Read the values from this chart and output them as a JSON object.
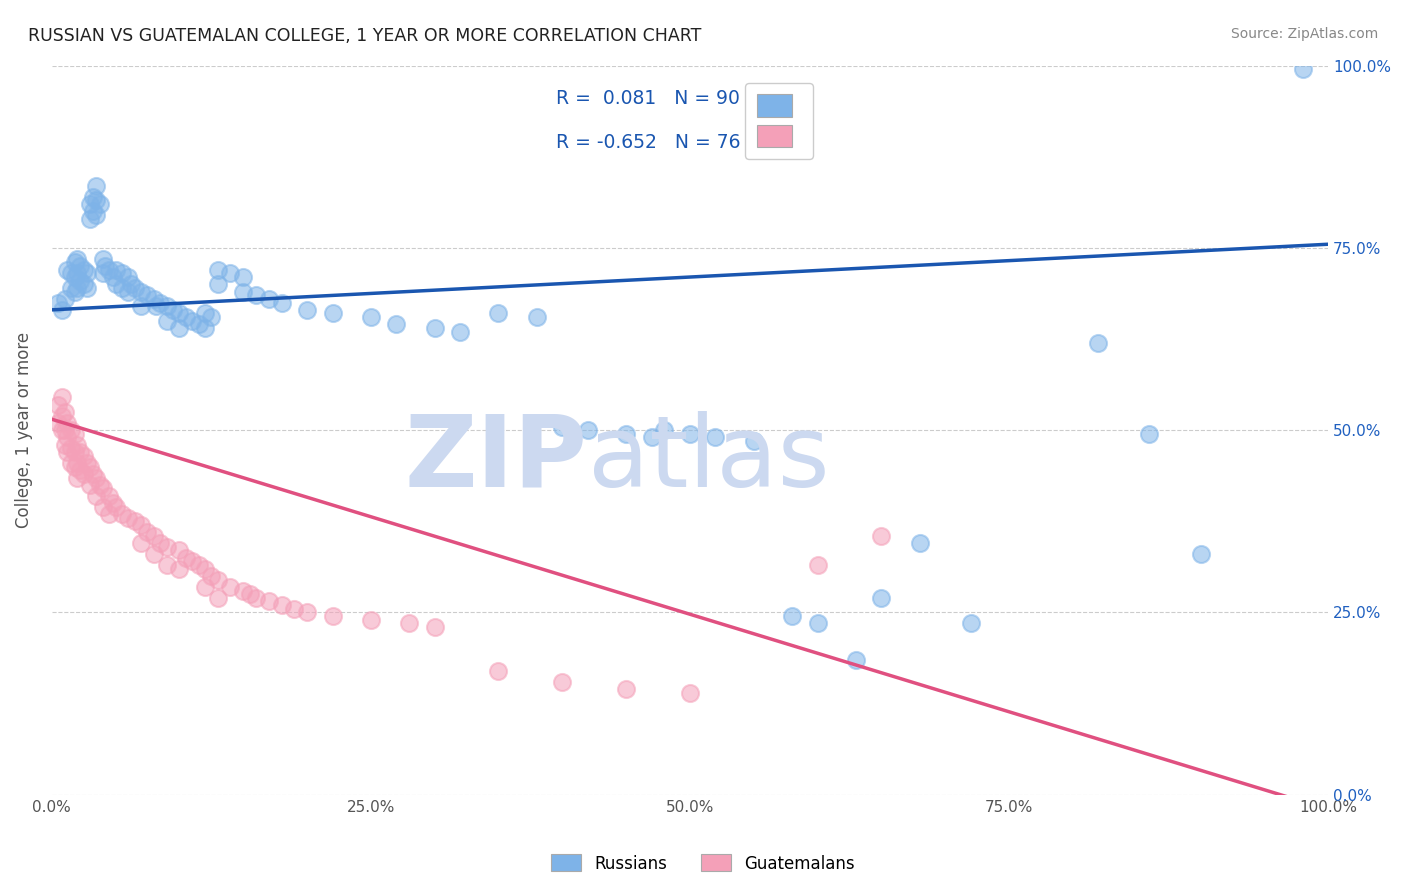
{
  "title": "RUSSIAN VS GUATEMALAN COLLEGE, 1 YEAR OR MORE CORRELATION CHART",
  "source": "Source: ZipAtlas.com",
  "ylabel": "College, 1 year or more",
  "ytick_labels": [
    "0.0%",
    "25.0%",
    "50.0%",
    "75.0%",
    "100.0%"
  ],
  "ytick_values": [
    0.0,
    0.25,
    0.5,
    0.75,
    1.0
  ],
  "xtick_labels": [
    "0.0%",
    "25.0%",
    "50.0%",
    "75.0%",
    "100.0%"
  ],
  "xtick_values": [
    0.0,
    0.25,
    0.5,
    0.75,
    1.0
  ],
  "legend_r_russian": "0.081",
  "legend_n_russian": "90",
  "legend_r_guatemalan": "-0.652",
  "legend_n_guatemalan": "76",
  "russian_color": "#7eb3e8",
  "guatemalan_color": "#f4a0b8",
  "russian_line_color": "#1a56b0",
  "guatemalan_line_color": "#e05080",
  "watermark_color": "#ccd9f0",
  "background_color": "#ffffff",
  "grid_color": "#cccccc",
  "russian_line_start_y": 0.665,
  "russian_line_end_y": 0.755,
  "guatemalan_line_start_y": 0.515,
  "guatemalan_line_end_y": -0.02,
  "russian_scatter": [
    [
      0.005,
      0.675
    ],
    [
      0.008,
      0.665
    ],
    [
      0.01,
      0.68
    ],
    [
      0.012,
      0.72
    ],
    [
      0.015,
      0.715
    ],
    [
      0.015,
      0.695
    ],
    [
      0.018,
      0.73
    ],
    [
      0.018,
      0.71
    ],
    [
      0.018,
      0.69
    ],
    [
      0.02,
      0.735
    ],
    [
      0.02,
      0.715
    ],
    [
      0.02,
      0.695
    ],
    [
      0.022,
      0.725
    ],
    [
      0.022,
      0.705
    ],
    [
      0.025,
      0.72
    ],
    [
      0.025,
      0.7
    ],
    [
      0.028,
      0.715
    ],
    [
      0.028,
      0.695
    ],
    [
      0.03,
      0.81
    ],
    [
      0.03,
      0.79
    ],
    [
      0.032,
      0.82
    ],
    [
      0.032,
      0.8
    ],
    [
      0.035,
      0.835
    ],
    [
      0.035,
      0.815
    ],
    [
      0.035,
      0.795
    ],
    [
      0.038,
      0.81
    ],
    [
      0.04,
      0.735
    ],
    [
      0.04,
      0.715
    ],
    [
      0.042,
      0.725
    ],
    [
      0.045,
      0.72
    ],
    [
      0.048,
      0.71
    ],
    [
      0.05,
      0.72
    ],
    [
      0.05,
      0.7
    ],
    [
      0.055,
      0.715
    ],
    [
      0.055,
      0.695
    ],
    [
      0.06,
      0.71
    ],
    [
      0.06,
      0.69
    ],
    [
      0.062,
      0.7
    ],
    [
      0.065,
      0.695
    ],
    [
      0.07,
      0.69
    ],
    [
      0.07,
      0.67
    ],
    [
      0.075,
      0.685
    ],
    [
      0.08,
      0.68
    ],
    [
      0.082,
      0.67
    ],
    [
      0.085,
      0.675
    ],
    [
      0.09,
      0.67
    ],
    [
      0.09,
      0.65
    ],
    [
      0.095,
      0.665
    ],
    [
      0.1,
      0.66
    ],
    [
      0.1,
      0.64
    ],
    [
      0.105,
      0.655
    ],
    [
      0.11,
      0.65
    ],
    [
      0.115,
      0.645
    ],
    [
      0.12,
      0.66
    ],
    [
      0.12,
      0.64
    ],
    [
      0.125,
      0.655
    ],
    [
      0.13,
      0.72
    ],
    [
      0.13,
      0.7
    ],
    [
      0.14,
      0.715
    ],
    [
      0.15,
      0.71
    ],
    [
      0.15,
      0.69
    ],
    [
      0.16,
      0.685
    ],
    [
      0.17,
      0.68
    ],
    [
      0.18,
      0.675
    ],
    [
      0.2,
      0.665
    ],
    [
      0.22,
      0.66
    ],
    [
      0.25,
      0.655
    ],
    [
      0.27,
      0.645
    ],
    [
      0.3,
      0.64
    ],
    [
      0.32,
      0.635
    ],
    [
      0.35,
      0.66
    ],
    [
      0.38,
      0.655
    ],
    [
      0.4,
      0.505
    ],
    [
      0.42,
      0.5
    ],
    [
      0.45,
      0.495
    ],
    [
      0.47,
      0.49
    ],
    [
      0.48,
      0.5
    ],
    [
      0.5,
      0.495
    ],
    [
      0.52,
      0.49
    ],
    [
      0.55,
      0.485
    ],
    [
      0.58,
      0.245
    ],
    [
      0.6,
      0.235
    ],
    [
      0.63,
      0.185
    ],
    [
      0.65,
      0.27
    ],
    [
      0.68,
      0.345
    ],
    [
      0.72,
      0.235
    ],
    [
      0.82,
      0.62
    ],
    [
      0.86,
      0.495
    ],
    [
      0.9,
      0.33
    ],
    [
      0.98,
      0.995
    ]
  ],
  "guatemalan_scatter": [
    [
      0.005,
      0.535
    ],
    [
      0.005,
      0.51
    ],
    [
      0.008,
      0.545
    ],
    [
      0.008,
      0.52
    ],
    [
      0.008,
      0.5
    ],
    [
      0.01,
      0.525
    ],
    [
      0.01,
      0.5
    ],
    [
      0.01,
      0.48
    ],
    [
      0.012,
      0.51
    ],
    [
      0.012,
      0.49
    ],
    [
      0.012,
      0.47
    ],
    [
      0.015,
      0.5
    ],
    [
      0.015,
      0.475
    ],
    [
      0.015,
      0.455
    ],
    [
      0.018,
      0.495
    ],
    [
      0.018,
      0.47
    ],
    [
      0.018,
      0.45
    ],
    [
      0.02,
      0.48
    ],
    [
      0.02,
      0.455
    ],
    [
      0.02,
      0.435
    ],
    [
      0.022,
      0.47
    ],
    [
      0.022,
      0.445
    ],
    [
      0.025,
      0.465
    ],
    [
      0.025,
      0.44
    ],
    [
      0.028,
      0.455
    ],
    [
      0.03,
      0.45
    ],
    [
      0.03,
      0.425
    ],
    [
      0.032,
      0.44
    ],
    [
      0.035,
      0.435
    ],
    [
      0.035,
      0.41
    ],
    [
      0.038,
      0.425
    ],
    [
      0.04,
      0.42
    ],
    [
      0.04,
      0.395
    ],
    [
      0.045,
      0.41
    ],
    [
      0.045,
      0.385
    ],
    [
      0.048,
      0.4
    ],
    [
      0.05,
      0.395
    ],
    [
      0.055,
      0.385
    ],
    [
      0.06,
      0.38
    ],
    [
      0.065,
      0.375
    ],
    [
      0.07,
      0.37
    ],
    [
      0.07,
      0.345
    ],
    [
      0.075,
      0.36
    ],
    [
      0.08,
      0.355
    ],
    [
      0.08,
      0.33
    ],
    [
      0.085,
      0.345
    ],
    [
      0.09,
      0.34
    ],
    [
      0.09,
      0.315
    ],
    [
      0.1,
      0.335
    ],
    [
      0.1,
      0.31
    ],
    [
      0.105,
      0.325
    ],
    [
      0.11,
      0.32
    ],
    [
      0.115,
      0.315
    ],
    [
      0.12,
      0.31
    ],
    [
      0.12,
      0.285
    ],
    [
      0.125,
      0.3
    ],
    [
      0.13,
      0.295
    ],
    [
      0.13,
      0.27
    ],
    [
      0.14,
      0.285
    ],
    [
      0.15,
      0.28
    ],
    [
      0.155,
      0.275
    ],
    [
      0.16,
      0.27
    ],
    [
      0.17,
      0.265
    ],
    [
      0.18,
      0.26
    ],
    [
      0.19,
      0.255
    ],
    [
      0.2,
      0.25
    ],
    [
      0.22,
      0.245
    ],
    [
      0.25,
      0.24
    ],
    [
      0.28,
      0.235
    ],
    [
      0.3,
      0.23
    ],
    [
      0.35,
      0.17
    ],
    [
      0.4,
      0.155
    ],
    [
      0.45,
      0.145
    ],
    [
      0.5,
      0.14
    ],
    [
      0.6,
      0.315
    ],
    [
      0.65,
      0.355
    ]
  ]
}
